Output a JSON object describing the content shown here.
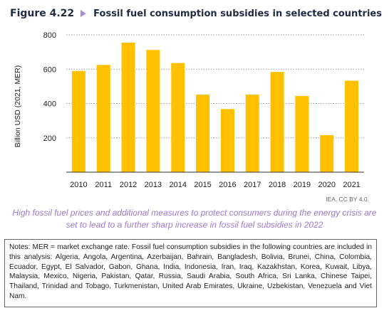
{
  "header": {
    "figure_number": "Figure 4.22",
    "title": "Fossil fuel consumption subsidies in selected countries"
  },
  "chart_data": {
    "type": "bar",
    "categories": [
      "2010",
      "2011",
      "2012",
      "2013",
      "2014",
      "2015",
      "2016",
      "2017",
      "2018",
      "2019",
      "2020",
      "2021"
    ],
    "values": [
      590,
      625,
      755,
      712,
      636,
      452,
      368,
      452,
      584,
      444,
      216,
      533
    ],
    "ylabel": "Billion USD (2021, MER)",
    "xlabel": "",
    "ylim": [
      0,
      800
    ],
    "yticks": [
      200,
      400,
      600,
      800
    ],
    "grid": "dotted horizontal",
    "bar_color": "#ffc000"
  },
  "credit": "IEA. CC BY 4.0.",
  "caption": "High fossil fuel prices and additional measures to protect consumers during the energy crisis are set to lead to a further sharp increase in fossil fuel subsidies in 2022",
  "notes": "Notes: MER = market exchange rate. Fossil fuel consumption subsidies in the following countries are included in this analysis: Algeria, Angola, Argentina, Azerbaijan, Bahrain, Bangladesh, Bolivia, Brunei, China, Colombia, Ecuador, Egypt, El Salvador, Gabon, Ghana, India, Indonesia, Iran, Iraq, Kazakhstan, Korea, Kuwait, Libya, Malaysia, Mexico, Nigeria, Pakistan, Qatar, Russia, Saudi Arabia, South Africa, Sri Lanka, Chinese Taipei, Thailand, Trinidad and Tobago, Turkmenistan, United Arab Emirates, Ukraine, Uzbekistan, Venezuela and Viet Nam."
}
